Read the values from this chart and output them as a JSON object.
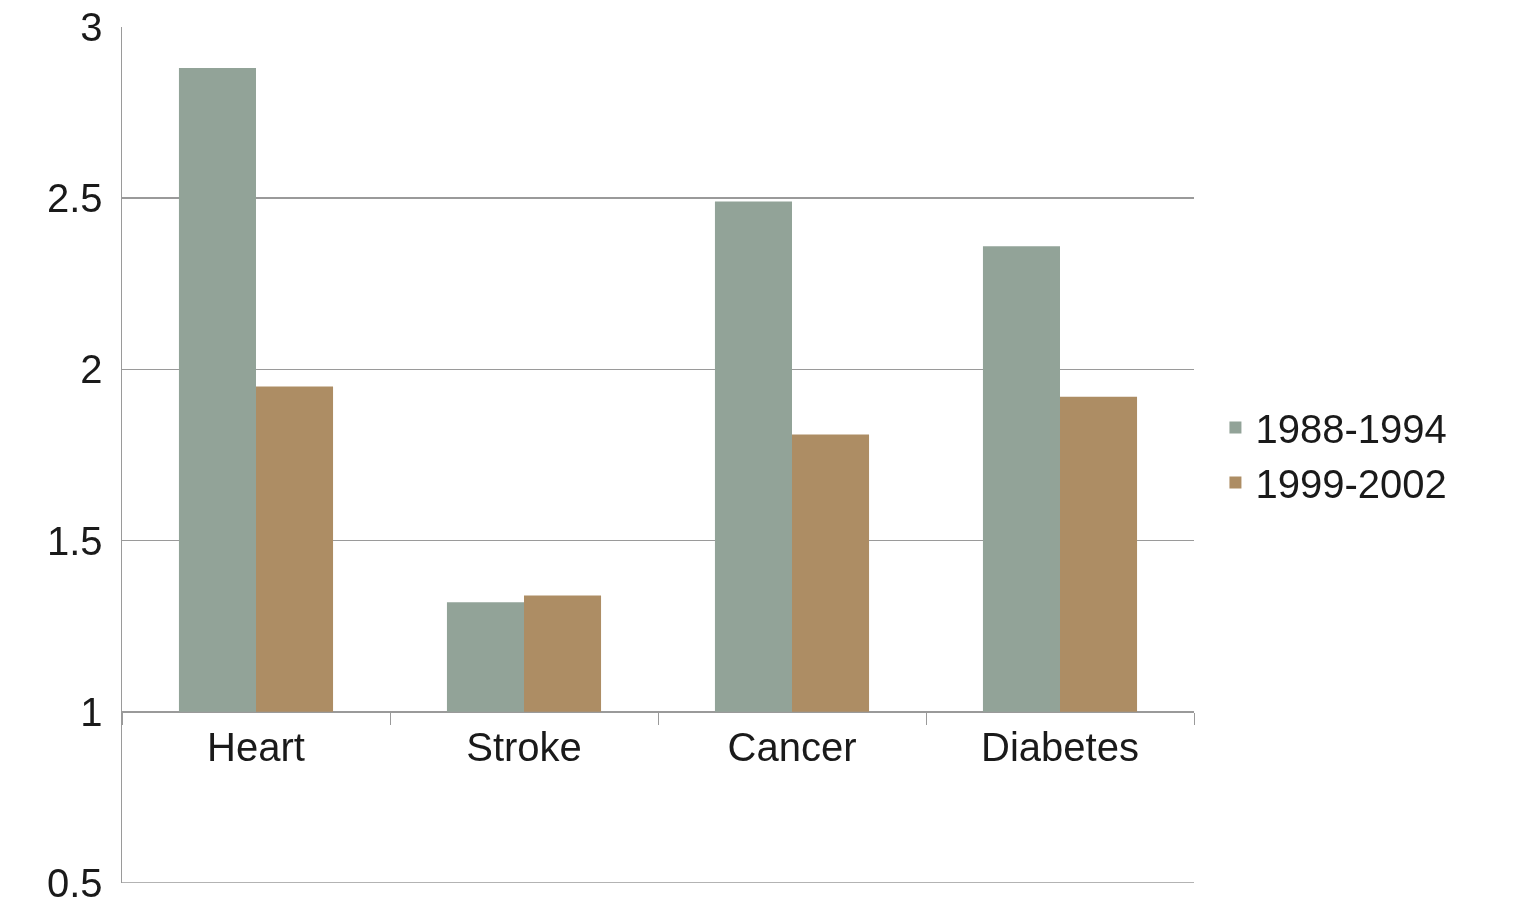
{
  "chart_data": {
    "type": "bar",
    "categories": [
      "Heart",
      "Stroke",
      "Cancer",
      "Diabetes"
    ],
    "series": [
      {
        "name": "1988-1994",
        "color": "#92a398",
        "base": [
          1,
          1,
          1,
          1
        ],
        "values": [
          1.88,
          0.32,
          1.49,
          1.36
        ]
      },
      {
        "name": "1999-2002",
        "color": "#ad8d64",
        "base": [
          1,
          1,
          1,
          1
        ],
        "values": [
          0.95,
          0.34,
          0.81,
          0.92
        ]
      }
    ],
    "ylim": [
      0.5,
      3
    ],
    "yticks": [
      0.5,
      1,
      1.5,
      2,
      2.5,
      3
    ],
    "grid": "y",
    "legend": "right"
  }
}
